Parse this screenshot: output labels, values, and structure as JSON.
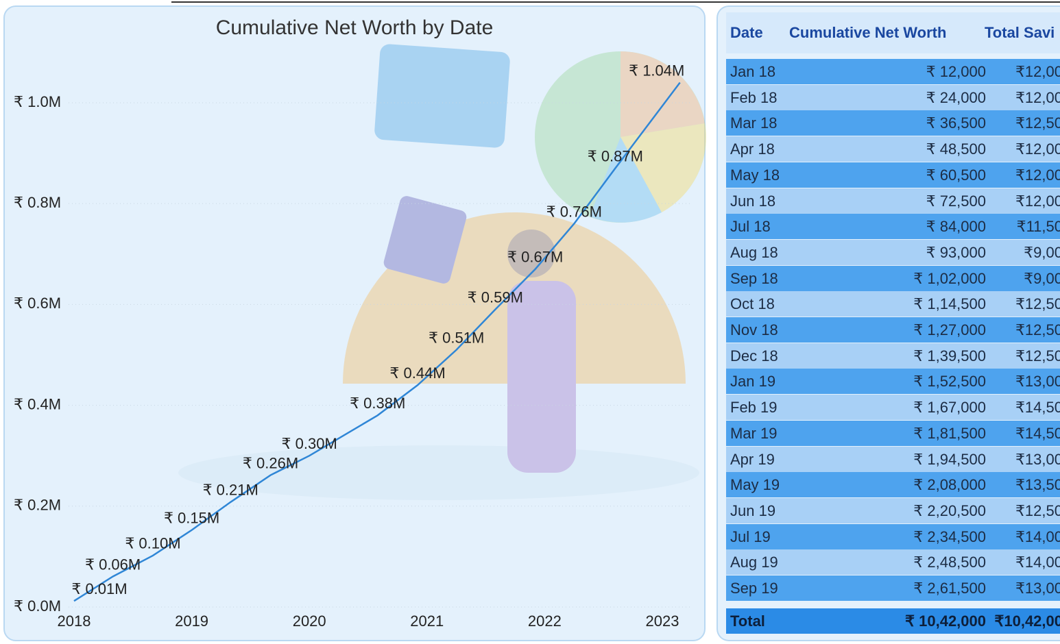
{
  "chart_data": {
    "type": "line",
    "title": "Cumulative Net Worth by Date",
    "x": [
      2018,
      2018.33,
      2018.67,
      2019,
      2019.33,
      2019.67,
      2020,
      2020.58,
      2020.92,
      2021.25,
      2021.58,
      2021.92,
      2022.25,
      2022.6,
      2023.15
    ],
    "series": [
      {
        "name": "Cumulative Net Worth",
        "color": "#2f86d6",
        "values": [
          12000,
          60500,
          102000,
          152500,
          208000,
          261500,
          300000,
          380000,
          440000,
          510000,
          590000,
          670000,
          760000,
          870000,
          1040000
        ],
        "value_labels": [
          "₹ 0.01M",
          "₹ 0.06M",
          "₹ 0.10M",
          "₹ 0.15M",
          "₹ 0.21M",
          "₹ 0.26M",
          "₹ 0.30M",
          "₹ 0.38M",
          "₹ 0.44M",
          "₹ 0.51M",
          "₹ 0.59M",
          "₹ 0.67M",
          "₹ 0.76M",
          "₹ 0.87M",
          "₹ 1.04M"
        ]
      }
    ],
    "xlim": [
      2017.95,
      2023.26
    ],
    "xticks": [
      2018,
      2019,
      2020,
      2021,
      2022,
      2023
    ],
    "ylim": [
      0,
      1110000
    ],
    "yticks": [
      {
        "value": 0,
        "label": "₹ 0.0M"
      },
      {
        "value": 200000,
        "label": "₹ 0.2M"
      },
      {
        "value": 400000,
        "label": "₹ 0.4M"
      },
      {
        "value": 600000,
        "label": "₹ 0.6M"
      },
      {
        "value": 800000,
        "label": "₹ 0.8M"
      },
      {
        "value": 1000000,
        "label": "₹ 1.0M"
      }
    ],
    "grid": true
  },
  "table": {
    "columns": [
      "Date",
      "Cumulative Net Worth",
      "Total Savi"
    ],
    "rows": [
      [
        "Jan 18",
        "₹ 12,000",
        "₹12,00"
      ],
      [
        "Feb 18",
        "₹ 24,000",
        "₹12,00"
      ],
      [
        "Mar 18",
        "₹ 36,500",
        "₹12,50"
      ],
      [
        "Apr 18",
        "₹ 48,500",
        "₹12,00"
      ],
      [
        "May 18",
        "₹ 60,500",
        "₹12,00"
      ],
      [
        "Jun 18",
        "₹ 72,500",
        "₹12,00"
      ],
      [
        "Jul 18",
        "₹ 84,000",
        "₹11,50"
      ],
      [
        "Aug 18",
        "₹ 93,000",
        "₹9,00"
      ],
      [
        "Sep 18",
        "₹ 1,02,000",
        "₹9,00"
      ],
      [
        "Oct 18",
        "₹ 1,14,500",
        "₹12,50"
      ],
      [
        "Nov 18",
        "₹ 1,27,000",
        "₹12,50"
      ],
      [
        "Dec 18",
        "₹ 1,39,500",
        "₹12,50"
      ],
      [
        "Jan 19",
        "₹ 1,52,500",
        "₹13,00"
      ],
      [
        "Feb 19",
        "₹ 1,67,000",
        "₹14,50"
      ],
      [
        "Mar 19",
        "₹ 1,81,500",
        "₹14,50"
      ],
      [
        "Apr 19",
        "₹ 1,94,500",
        "₹13,00"
      ],
      [
        "May 19",
        "₹ 2,08,000",
        "₹13,50"
      ],
      [
        "Jun 19",
        "₹ 2,20,500",
        "₹12,50"
      ],
      [
        "Jul 19",
        "₹ 2,34,500",
        "₹14,00"
      ],
      [
        "Aug 19",
        "₹ 2,48,500",
        "₹14,00"
      ],
      [
        "Sep 19",
        "₹ 2,61,500",
        "₹13,00"
      ]
    ],
    "total": [
      "Total",
      "₹ 10,42,000",
      "₹10,42,00"
    ]
  }
}
